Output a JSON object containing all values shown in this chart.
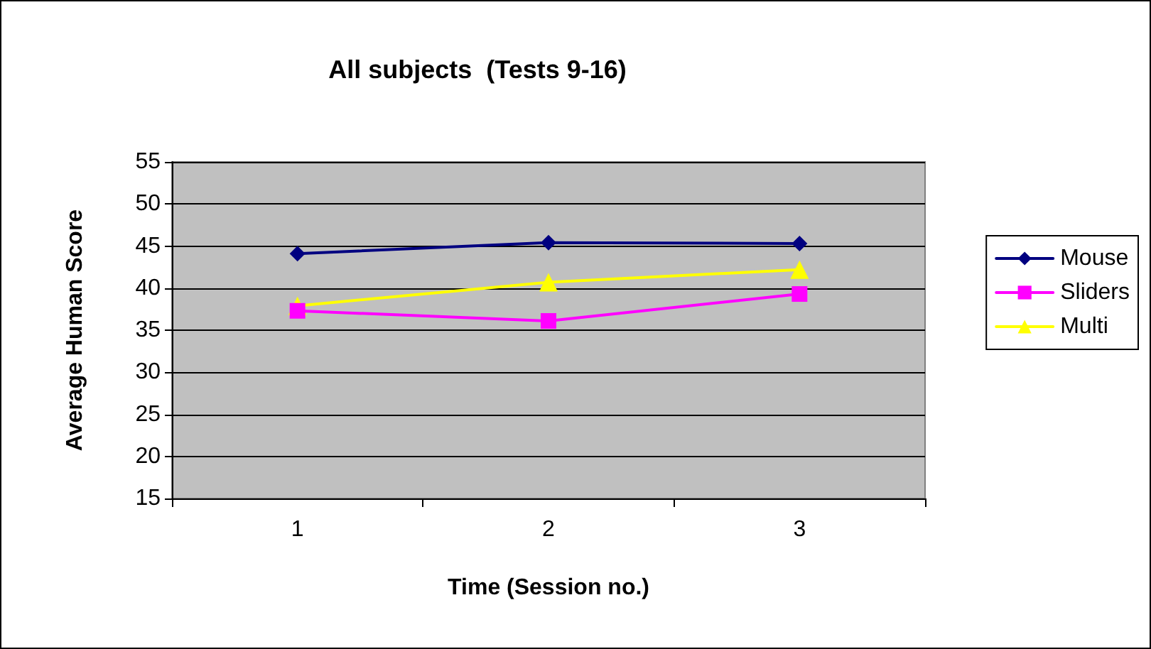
{
  "chart_data": {
    "type": "line",
    "title": "All subjects  (Tests 9-16)",
    "xlabel": "Time (Session no.)",
    "ylabel": "Average Human Score",
    "categories": [
      "1",
      "2",
      "3"
    ],
    "series": [
      {
        "name": "Mouse",
        "color": "#000080",
        "marker": "diamond",
        "values": [
          44.1,
          45.4,
          45.3
        ]
      },
      {
        "name": "Sliders",
        "color": "#ff00ff",
        "marker": "square",
        "values": [
          37.3,
          36.1,
          39.3
        ]
      },
      {
        "name": "Multi",
        "color": "#ffff00",
        "marker": "triangle",
        "values": [
          37.9,
          40.7,
          42.2
        ]
      }
    ],
    "ylim": [
      15,
      55
    ],
    "yticks": [
      15,
      20,
      25,
      30,
      35,
      40,
      45,
      50,
      55
    ],
    "grid": "y",
    "legend": "right"
  }
}
